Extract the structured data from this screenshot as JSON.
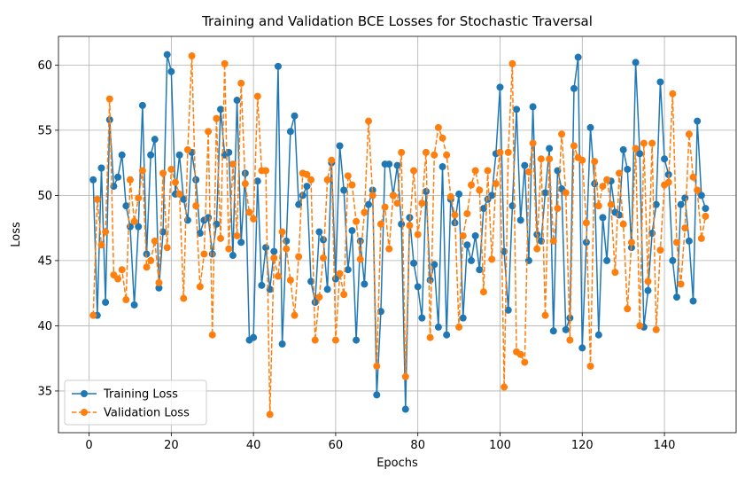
{
  "chart_data": {
    "type": "line",
    "title": "Training and Validation BCE Losses for Stochastic Traversal",
    "xlabel": "Epochs",
    "ylabel": "Loss",
    "xlim": [
      -7.45,
      157.45
    ],
    "ylim": [
      31.8,
      62.2
    ],
    "xticks": [
      0,
      20,
      40,
      60,
      80,
      100,
      120,
      140
    ],
    "yticks": [
      35,
      40,
      45,
      50,
      55,
      60
    ],
    "grid": true,
    "legend_position": "lower-left",
    "series": [
      {
        "name": "Training Loss",
        "color": "#1f77b4",
        "style": "solid",
        "x": [
          1,
          2,
          3,
          4,
          5,
          6,
          7,
          8,
          9,
          10,
          11,
          12,
          13,
          14,
          15,
          16,
          17,
          18,
          19,
          20,
          21,
          22,
          23,
          24,
          25,
          26,
          27,
          28,
          29,
          30,
          31,
          32,
          33,
          34,
          35,
          36,
          37,
          38,
          39,
          40,
          41,
          42,
          43,
          44,
          45,
          46,
          47,
          48,
          49,
          50,
          51,
          52,
          53,
          54,
          55,
          56,
          57,
          58,
          59,
          60,
          61,
          62,
          63,
          64,
          65,
          66,
          67,
          68,
          69,
          70,
          71,
          72,
          73,
          74,
          75,
          76,
          77,
          78,
          79,
          80,
          81,
          82,
          83,
          84,
          85,
          86,
          87,
          88,
          89,
          90,
          91,
          92,
          93,
          94,
          95,
          96,
          97,
          98,
          99,
          100,
          101,
          102,
          103,
          104,
          105,
          106,
          107,
          108,
          109,
          110,
          111,
          112,
          113,
          114,
          115,
          116,
          117,
          118,
          119,
          120,
          121,
          122,
          123,
          124,
          125,
          126,
          127,
          128,
          129,
          130,
          131,
          132,
          133,
          134,
          135,
          136,
          137,
          138,
          139,
          140,
          141,
          142,
          143,
          144,
          145,
          146,
          147,
          148,
          149,
          150
        ],
        "values": [
          51.2,
          40.8,
          52.1,
          41.8,
          55.8,
          50.7,
          51.4,
          53.1,
          49.2,
          47.6,
          41.6,
          47.6,
          56.9,
          45.5,
          53.1,
          54.3,
          42.9,
          47.2,
          60.8,
          59.5,
          50.1,
          53.1,
          49.7,
          48.1,
          53.3,
          51.2,
          47.1,
          48.1,
          48.3,
          45.5,
          47.8,
          56.6,
          53.1,
          53.3,
          45.4,
          57.3,
          46.4,
          51.7,
          38.9,
          39.1,
          51.1,
          43.1,
          46.0,
          42.8,
          45.7,
          59.9,
          38.6,
          46.5,
          54.9,
          56.1,
          49.3,
          50.0,
          50.7,
          43.4,
          41.8,
          47.2,
          46.6,
          42.8,
          52.5,
          43.6,
          53.8,
          50.4,
          44.3,
          47.3,
          38.9,
          46.5,
          43.2,
          49.3,
          50.4,
          34.7,
          41.1,
          52.4,
          52.4,
          50.0,
          52.3,
          47.8,
          33.6,
          48.3,
          44.8,
          43.0,
          40.6,
          50.3,
          43.5,
          44.7,
          39.9,
          52.2,
          39.3,
          49.7,
          47.9,
          50.1,
          40.6,
          46.2,
          45.0,
          46.9,
          44.3,
          49.0,
          49.7,
          50.0,
          53.2,
          58.3,
          45.7,
          41.2,
          49.2,
          56.6,
          48.1,
          52.3,
          45.0,
          56.8,
          47.0,
          46.5,
          50.2,
          53.6,
          39.6,
          51.9,
          50.5,
          39.7,
          40.6,
          58.2,
          60.6,
          38.3,
          46.4,
          55.2,
          50.9,
          39.3,
          48.3,
          45.0,
          51.1,
          48.7,
          48.5,
          53.5,
          52.0,
          46.0,
          60.2,
          53.2,
          39.9,
          42.7,
          47.1,
          49.3,
          58.7,
          52.8,
          51.6,
          45.0,
          42.2,
          49.3,
          49.8,
          46.5,
          41.9,
          55.7,
          50.0,
          49.0
        ]
      },
      {
        "name": "Validation Loss",
        "color": "#ff7f0e",
        "style": "dashed",
        "x": [
          1,
          2,
          3,
          4,
          5,
          6,
          7,
          8,
          9,
          10,
          11,
          12,
          13,
          14,
          15,
          16,
          17,
          18,
          19,
          20,
          21,
          22,
          23,
          24,
          25,
          26,
          27,
          28,
          29,
          30,
          31,
          32,
          33,
          34,
          35,
          36,
          37,
          38,
          39,
          40,
          41,
          42,
          43,
          44,
          45,
          46,
          47,
          48,
          49,
          50,
          51,
          52,
          53,
          54,
          55,
          56,
          57,
          58,
          59,
          60,
          61,
          62,
          63,
          64,
          65,
          66,
          67,
          68,
          69,
          70,
          71,
          72,
          73,
          74,
          75,
          76,
          77,
          78,
          79,
          80,
          81,
          82,
          83,
          84,
          85,
          86,
          87,
          88,
          89,
          90,
          91,
          92,
          93,
          94,
          95,
          96,
          97,
          98,
          99,
          100,
          101,
          102,
          103,
          104,
          105,
          106,
          107,
          108,
          109,
          110,
          111,
          112,
          113,
          114,
          115,
          116,
          117,
          118,
          119,
          120,
          121,
          122,
          123,
          124,
          125,
          126,
          127,
          128,
          129,
          130,
          131,
          132,
          133,
          134,
          135,
          136,
          137,
          138,
          139,
          140,
          141,
          142,
          143,
          144,
          145,
          146,
          147,
          148,
          149,
          150
        ],
        "values": [
          40.8,
          49.7,
          46.2,
          47.2,
          57.4,
          43.9,
          43.6,
          44.3,
          42.0,
          51.2,
          48.0,
          49.8,
          51.9,
          44.5,
          45.0,
          46.5,
          43.3,
          51.7,
          46.0,
          52.0,
          51.0,
          50.1,
          42.1,
          53.5,
          60.7,
          49.2,
          43.0,
          45.5,
          54.9,
          39.3,
          55.9,
          46.7,
          60.1,
          45.9,
          52.4,
          46.9,
          58.6,
          50.9,
          48.7,
          48.2,
          57.6,
          51.9,
          51.9,
          33.2,
          45.2,
          43.8,
          47.2,
          45.9,
          43.5,
          40.8,
          45.3,
          51.7,
          51.6,
          51.2,
          38.9,
          42.2,
          45.2,
          51.2,
          52.7,
          38.9,
          44.0,
          42.4,
          51.5,
          50.8,
          48.0,
          45.1,
          48.7,
          55.7,
          50.0,
          36.9,
          47.8,
          49.1,
          45.9,
          50.0,
          49.4,
          53.3,
          36.1,
          47.7,
          51.9,
          47.0,
          49.4,
          53.3,
          39.1,
          53.1,
          55.2,
          54.4,
          53.1,
          49.9,
          48.5,
          39.9,
          46.9,
          48.6,
          50.8,
          51.9,
          50.4,
          42.6,
          51.9,
          45.1,
          50.9,
          53.3,
          35.3,
          53.3,
          60.1,
          38.0,
          37.8,
          37.2,
          51.8,
          54.0,
          45.9,
          52.8,
          40.8,
          52.8,
          46.5,
          49.0,
          54.7,
          50.2,
          38.9,
          53.8,
          52.9,
          52.7,
          47.9,
          36.9,
          52.6,
          49.2,
          50.7,
          51.2,
          49.3,
          44.1,
          51.7,
          47.8,
          41.3,
          46.4,
          53.6,
          40.0,
          54.0,
          43.4,
          54.0,
          39.7,
          45.8,
          50.8,
          51.0,
          57.8,
          46.4,
          43.2,
          47.5,
          54.7,
          51.4,
          50.4,
          46.7,
          48.4
        ]
      }
    ]
  }
}
